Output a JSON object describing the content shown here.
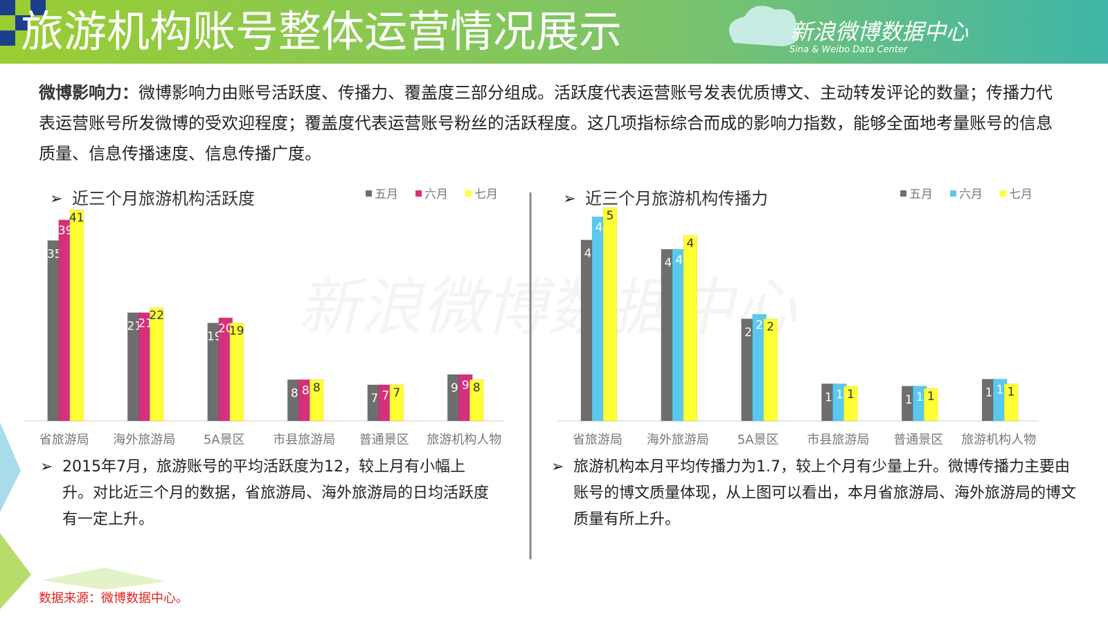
{
  "header": {
    "title": "旅游机构账号整体运营情况展示",
    "logo": "新浪微博数据中心",
    "logo_sub": "Sina & Weibo Data Center"
  },
  "intro": {
    "lead": "微博影响力：",
    "text": "微博影响力由账号活跃度、传播力、覆盖度三部分组成。活跃度代表运营账号发表优质博文、主动转发评论的数量；传播力代表运营账号所发微博的受欢迎程度；覆盖度代表运营账号粉丝的活跃程度。这几项指标综合而成的影响力指数，能够全面地考量账号的信息质量、信息传播速度、信息传播广度。"
  },
  "watermark": "新浪微博数据中心",
  "chart_data": [
    {
      "type": "bar",
      "title": "近三个月旅游机构活跃度",
      "categories": [
        "省旅游局",
        "海外旅游局",
        "5A景区",
        "市县旅游局",
        "普通景区",
        "旅游机构人物"
      ],
      "series": [
        {
          "name": "五月",
          "color": "#6e6e6e",
          "values": [
            35,
            21,
            19,
            8,
            7,
            9
          ]
        },
        {
          "name": "六月",
          "color": "#d62f7b",
          "values": [
            39,
            21,
            20,
            8,
            7,
            9
          ]
        },
        {
          "name": "七月",
          "color": "#ffff33",
          "values": [
            41,
            22,
            19,
            8,
            7,
            8
          ]
        }
      ],
      "ylim": [
        0,
        45
      ],
      "legend": "top-right",
      "note": "2015年7月，旅游账号的平均活跃度为12，较上月有小幅上升。对比近三个月的数据，省旅游局、海外旅游局的日均活跃度有一定上升。"
    },
    {
      "type": "bar",
      "title": "近三个月旅游机构传播力",
      "categories": [
        "省旅游局",
        "海外旅游局",
        "5A景区",
        "市县旅游局",
        "普通景区",
        "旅游机构人物"
      ],
      "series": [
        {
          "name": "五月",
          "color": "#6e6e6e",
          "values": [
            3.9,
            3.7,
            2.2,
            0.8,
            0.75,
            0.9
          ],
          "value_labels": [
            "4",
            "4",
            "2",
            "1",
            "1",
            "1"
          ]
        },
        {
          "name": "六月",
          "color": "#5bc8ef",
          "values": [
            4.4,
            3.7,
            2.3,
            0.8,
            0.75,
            0.9
          ],
          "value_labels": [
            "4",
            "4",
            "2",
            "1",
            "1",
            "1"
          ]
        },
        {
          "name": "七月",
          "color": "#ffff33",
          "values": [
            4.6,
            4.0,
            2.2,
            0.75,
            0.7,
            0.8
          ],
          "value_labels": [
            "5",
            "4",
            "2",
            "1",
            "1",
            "1"
          ]
        }
      ],
      "ylim": [
        0,
        5
      ],
      "legend": "top-right",
      "note": "旅游机构本月平均传播力为1.7，较上个月有少量上升。微博传播力主要由账号的博文质量体现，从上图可以看出，本月省旅游局、海外旅游局的博文质量有所上升。"
    }
  ],
  "source": "数据来源：微博数据中心。"
}
